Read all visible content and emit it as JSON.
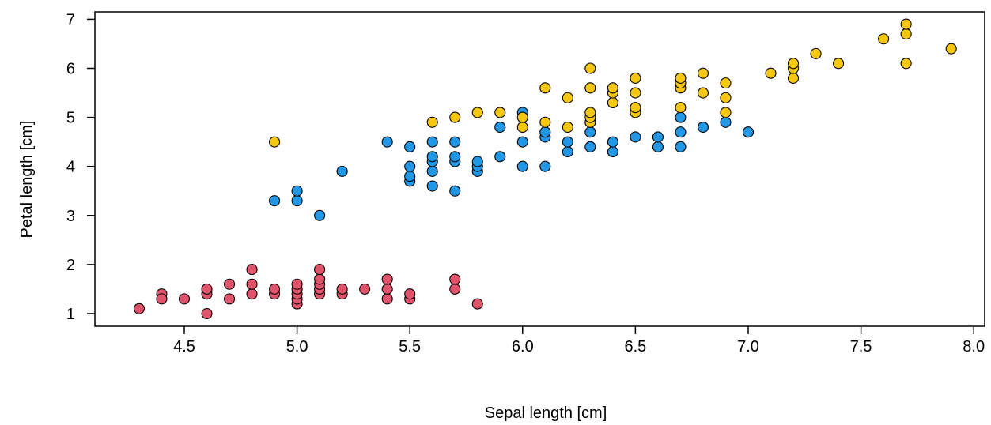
{
  "chart_data": {
    "type": "scatter",
    "xlabel": "Sepal length [cm]",
    "ylabel": "Petal length [cm]",
    "xlim": [
      4.2,
      8.0
    ],
    "ylim": [
      0.8,
      7.0
    ],
    "x_ticks": [
      "4.5",
      "5.0",
      "5.5",
      "6.0",
      "6.5",
      "7.0",
      "7.5",
      "8.0"
    ],
    "y_ticks": [
      "1",
      "2",
      "3",
      "4",
      "5",
      "6",
      "7"
    ],
    "grid": false,
    "legend": "none",
    "series": [
      {
        "color": "#DF536B",
        "points": [
          [
            4.3,
            1.1
          ],
          [
            4.4,
            1.4
          ],
          [
            4.4,
            1.3
          ],
          [
            4.5,
            1.3
          ],
          [
            4.6,
            1.0
          ],
          [
            4.6,
            1.4
          ],
          [
            4.6,
            1.5
          ],
          [
            4.7,
            1.3
          ],
          [
            4.7,
            1.6
          ],
          [
            4.8,
            1.4
          ],
          [
            4.8,
            1.6
          ],
          [
            4.8,
            1.9
          ],
          [
            4.9,
            1.4
          ],
          [
            4.9,
            1.5
          ],
          [
            5.0,
            1.2
          ],
          [
            5.0,
            1.3
          ],
          [
            5.0,
            1.4
          ],
          [
            5.0,
            1.5
          ],
          [
            5.0,
            1.6
          ],
          [
            5.1,
            1.4
          ],
          [
            5.1,
            1.5
          ],
          [
            5.1,
            1.6
          ],
          [
            5.1,
            1.7
          ],
          [
            5.1,
            1.9
          ],
          [
            5.2,
            1.4
          ],
          [
            5.2,
            1.5
          ],
          [
            5.3,
            1.5
          ],
          [
            5.4,
            1.3
          ],
          [
            5.4,
            1.5
          ],
          [
            5.4,
            1.7
          ],
          [
            5.5,
            1.3
          ],
          [
            5.5,
            1.4
          ],
          [
            5.7,
            1.5
          ],
          [
            5.7,
            1.7
          ],
          [
            5.8,
            1.2
          ]
        ]
      },
      {
        "color": "#2297E6",
        "points": [
          [
            4.9,
            3.3
          ],
          [
            5.0,
            3.3
          ],
          [
            5.0,
            3.5
          ],
          [
            5.1,
            3.0
          ],
          [
            5.2,
            3.9
          ],
          [
            5.4,
            4.5
          ],
          [
            5.5,
            3.7
          ],
          [
            5.5,
            3.8
          ],
          [
            5.5,
            4.0
          ],
          [
            5.5,
            4.4
          ],
          [
            5.6,
            3.6
          ],
          [
            5.6,
            3.9
          ],
          [
            5.6,
            4.1
          ],
          [
            5.6,
            4.2
          ],
          [
            5.6,
            4.5
          ],
          [
            5.7,
            3.5
          ],
          [
            5.7,
            4.1
          ],
          [
            5.7,
            4.2
          ],
          [
            5.7,
            4.5
          ],
          [
            5.8,
            3.9
          ],
          [
            5.8,
            4.0
          ],
          [
            5.8,
            4.1
          ],
          [
            5.9,
            4.2
          ],
          [
            5.9,
            4.8
          ],
          [
            6.0,
            4.0
          ],
          [
            6.0,
            4.5
          ],
          [
            6.0,
            5.1
          ],
          [
            6.1,
            4.0
          ],
          [
            6.1,
            4.6
          ],
          [
            6.1,
            4.7
          ],
          [
            6.2,
            4.3
          ],
          [
            6.2,
            4.5
          ],
          [
            6.3,
            4.4
          ],
          [
            6.3,
            4.7
          ],
          [
            6.3,
            4.9
          ],
          [
            6.4,
            4.3
          ],
          [
            6.4,
            4.5
          ],
          [
            6.5,
            4.6
          ],
          [
            6.6,
            4.4
          ],
          [
            6.6,
            4.6
          ],
          [
            6.7,
            4.4
          ],
          [
            6.7,
            4.7
          ],
          [
            6.7,
            5.0
          ],
          [
            6.8,
            4.8
          ],
          [
            6.9,
            4.9
          ],
          [
            7.0,
            4.7
          ]
        ]
      },
      {
        "color": "#F5C710",
        "points": [
          [
            4.9,
            4.5
          ],
          [
            5.6,
            4.9
          ],
          [
            5.7,
            5.0
          ],
          [
            5.8,
            5.1
          ],
          [
            5.9,
            5.1
          ],
          [
            6.0,
            4.8
          ],
          [
            6.0,
            5.0
          ],
          [
            6.1,
            4.9
          ],
          [
            6.1,
            5.6
          ],
          [
            6.2,
            4.8
          ],
          [
            6.2,
            5.4
          ],
          [
            6.3,
            4.9
          ],
          [
            6.3,
            5.0
          ],
          [
            6.3,
            5.1
          ],
          [
            6.3,
            5.6
          ],
          [
            6.3,
            6.0
          ],
          [
            6.4,
            5.3
          ],
          [
            6.4,
            5.5
          ],
          [
            6.4,
            5.6
          ],
          [
            6.5,
            5.1
          ],
          [
            6.5,
            5.2
          ],
          [
            6.5,
            5.5
          ],
          [
            6.5,
            5.8
          ],
          [
            6.7,
            5.2
          ],
          [
            6.7,
            5.6
          ],
          [
            6.7,
            5.7
          ],
          [
            6.7,
            5.8
          ],
          [
            6.8,
            5.5
          ],
          [
            6.8,
            5.9
          ],
          [
            6.9,
            5.1
          ],
          [
            6.9,
            5.4
          ],
          [
            6.9,
            5.7
          ],
          [
            7.1,
            5.9
          ],
          [
            7.2,
            5.8
          ],
          [
            7.2,
            6.0
          ],
          [
            7.2,
            6.1
          ],
          [
            7.3,
            6.3
          ],
          [
            7.4,
            6.1
          ],
          [
            7.6,
            6.6
          ],
          [
            7.7,
            6.1
          ],
          [
            7.7,
            6.7
          ],
          [
            7.7,
            6.9
          ],
          [
            7.9,
            6.4
          ]
        ]
      }
    ]
  }
}
